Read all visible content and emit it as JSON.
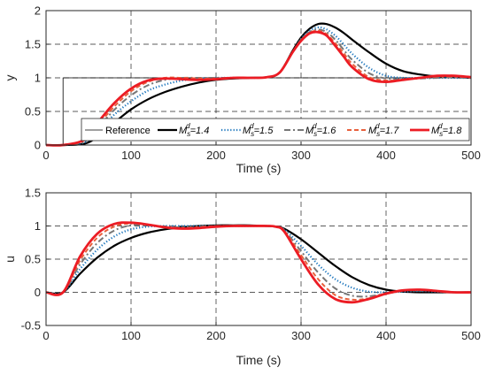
{
  "chart_data": [
    {
      "type": "line",
      "xlabel": "Time (s)",
      "ylabel": "y",
      "xlim": [
        0,
        500
      ],
      "ylim": [
        0,
        2
      ],
      "xticks": [
        0,
        100,
        200,
        300,
        400,
        500
      ],
      "yticks": [
        0,
        0.5,
        1,
        1.5,
        2
      ],
      "xtick_labels": [
        "0",
        "100",
        "200",
        "300",
        "400",
        "500"
      ],
      "ytick_labels": [
        "0",
        "0.5",
        "1",
        "1.5",
        "2"
      ],
      "grid": true,
      "legend_placement": "lower-center",
      "series": [
        {
          "name": "Reference",
          "color": "#000000",
          "style": "solid-thin",
          "x": [
            0,
            20,
            20,
            500
          ],
          "y": [
            0,
            0,
            1,
            1
          ]
        },
        {
          "name_prefix": "M",
          "name_sub": "s",
          "name_sup": "d",
          "name_value": "=1.4",
          "color": "#000000",
          "style": "solid",
          "x": [
            0,
            20,
            45,
            60,
            80,
            100,
            120,
            140,
            160,
            180,
            200,
            220,
            240,
            260,
            275,
            290,
            300,
            310,
            320,
            330,
            340,
            350,
            360,
            380,
            400,
            420,
            440,
            460,
            480,
            500
          ],
          "y": [
            0,
            0,
            0.02,
            0.12,
            0.33,
            0.53,
            0.68,
            0.79,
            0.87,
            0.93,
            0.97,
            0.99,
            1.0,
            1.01,
            1.08,
            1.4,
            1.6,
            1.73,
            1.8,
            1.8,
            1.75,
            1.67,
            1.57,
            1.38,
            1.21,
            1.1,
            1.05,
            1.02,
            1.01,
            1.0
          ]
        },
        {
          "name_prefix": "M",
          "name_sub": "s",
          "name_sup": "d",
          "name_value": "=1.5",
          "color": "#1a74bc",
          "style": "dotted",
          "x": [
            0,
            20,
            45,
            60,
            80,
            100,
            120,
            140,
            160,
            180,
            200,
            220,
            240,
            260,
            275,
            290,
            300,
            310,
            320,
            330,
            340,
            350,
            360,
            380,
            400,
            420,
            440,
            460,
            480,
            500
          ],
          "y": [
            0,
            0,
            0.04,
            0.2,
            0.45,
            0.65,
            0.81,
            0.9,
            0.96,
            0.99,
            1.0,
            1.0,
            1.0,
            1.01,
            1.08,
            1.38,
            1.58,
            1.7,
            1.75,
            1.72,
            1.63,
            1.5,
            1.36,
            1.15,
            1.03,
            1.0,
            1.0,
            1.0,
            1.0,
            1.0
          ]
        },
        {
          "name_prefix": "M",
          "name_sub": "s",
          "name_sup": "d",
          "name_value": "=1.6",
          "color": "#777777",
          "style": "dashdot",
          "x": [
            0,
            20,
            45,
            60,
            80,
            100,
            120,
            140,
            160,
            180,
            200,
            220,
            240,
            260,
            275,
            290,
            300,
            310,
            320,
            330,
            340,
            350,
            360,
            380,
            400,
            420,
            440,
            460,
            480,
            500
          ],
          "y": [
            0,
            0,
            0.05,
            0.24,
            0.52,
            0.74,
            0.89,
            0.97,
            1.0,
            1.0,
            1.0,
            1.0,
            1.0,
            1.01,
            1.08,
            1.38,
            1.57,
            1.68,
            1.72,
            1.68,
            1.57,
            1.42,
            1.27,
            1.07,
            0.99,
            0.98,
            0.99,
            1.0,
            1.01,
            1.0
          ]
        },
        {
          "name_prefix": "M",
          "name_sub": "s",
          "name_sup": "d",
          "name_value": "=1.7",
          "color": "#e8603c",
          "style": "dashed",
          "x": [
            0,
            20,
            45,
            60,
            80,
            100,
            120,
            140,
            160,
            180,
            200,
            220,
            240,
            260,
            275,
            290,
            300,
            310,
            320,
            330,
            340,
            350,
            360,
            380,
            400,
            420,
            440,
            460,
            480,
            500
          ],
          "y": [
            0,
            0,
            0.07,
            0.28,
            0.57,
            0.8,
            0.94,
            1.0,
            1.0,
            0.99,
            0.99,
            1.0,
            1.0,
            1.01,
            1.08,
            1.38,
            1.56,
            1.67,
            1.7,
            1.65,
            1.52,
            1.37,
            1.21,
            1.01,
            0.96,
            0.97,
            1.0,
            1.02,
            1.02,
            1.01
          ]
        },
        {
          "name_prefix": "M",
          "name_sub": "s",
          "name_sup": "d",
          "name_value": "=1.8",
          "color": "#ec1c24",
          "style": "solid-thick",
          "x": [
            0,
            20,
            45,
            60,
            80,
            100,
            120,
            140,
            160,
            180,
            200,
            220,
            240,
            260,
            275,
            290,
            300,
            310,
            320,
            330,
            340,
            350,
            360,
            380,
            400,
            420,
            440,
            460,
            480,
            500
          ],
          "y": [
            0,
            0,
            0.08,
            0.32,
            0.62,
            0.84,
            0.96,
            0.99,
            0.98,
            0.97,
            0.98,
            1.0,
            1.0,
            1.01,
            1.08,
            1.38,
            1.55,
            1.66,
            1.68,
            1.63,
            1.48,
            1.32,
            1.16,
            0.98,
            0.94,
            0.97,
            1.0,
            1.03,
            1.03,
            1.01
          ]
        }
      ]
    },
    {
      "type": "line",
      "xlabel": "Time (s)",
      "ylabel": "u",
      "xlim": [
        0,
        500
      ],
      "ylim": [
        -0.5,
        1.5
      ],
      "xticks": [
        0,
        100,
        200,
        300,
        400,
        500
      ],
      "yticks": [
        -0.5,
        0,
        0.5,
        1,
        1.5
      ],
      "xtick_labels": [
        "0",
        "100",
        "200",
        "300",
        "400",
        "500"
      ],
      "ytick_labels": [
        "-0.5",
        "0",
        "0.5",
        "1",
        "1.5"
      ],
      "grid": true,
      "series": [
        {
          "color": "#000000",
          "style": "solid",
          "x": [
            0,
            20,
            40,
            60,
            80,
            100,
            120,
            140,
            160,
            180,
            200,
            220,
            240,
            260,
            270,
            280,
            300,
            320,
            340,
            360,
            380,
            400,
            420,
            440,
            460,
            480,
            500
          ],
          "y": [
            0,
            0,
            0.28,
            0.52,
            0.7,
            0.82,
            0.9,
            0.95,
            0.98,
            1.0,
            1.01,
            1.01,
            1.01,
            1.0,
            0.99,
            0.96,
            0.8,
            0.6,
            0.4,
            0.23,
            0.11,
            0.04,
            0.01,
            0.0,
            0.0,
            0.0,
            0.0
          ]
        },
        {
          "color": "#1a74bc",
          "style": "dotted",
          "x": [
            0,
            20,
            40,
            60,
            80,
            100,
            120,
            140,
            160,
            180,
            200,
            220,
            240,
            260,
            270,
            280,
            300,
            320,
            340,
            360,
            380,
            400,
            420,
            440,
            460,
            480,
            500
          ],
          "y": [
            0,
            0,
            0.35,
            0.64,
            0.84,
            0.95,
            0.99,
            1.0,
            1.0,
            1.0,
            1.0,
            1.0,
            1.0,
            1.0,
            0.99,
            0.95,
            0.7,
            0.42,
            0.2,
            0.07,
            0.01,
            0.0,
            0.01,
            0.02,
            0.01,
            0.0,
            0.0
          ]
        },
        {
          "color": "#777777",
          "style": "dashdot",
          "x": [
            0,
            20,
            40,
            60,
            80,
            100,
            120,
            140,
            160,
            180,
            200,
            220,
            240,
            260,
            270,
            280,
            300,
            320,
            340,
            360,
            380,
            400,
            420,
            440,
            460,
            480,
            500
          ],
          "y": [
            0,
            0,
            0.42,
            0.74,
            0.93,
            1.01,
            1.01,
            0.99,
            0.98,
            0.99,
            1.0,
            1.0,
            1.0,
            1.0,
            0.99,
            0.94,
            0.62,
            0.3,
            0.06,
            -0.05,
            -0.06,
            -0.02,
            0.02,
            0.03,
            0.02,
            0.0,
            0.0
          ]
        },
        {
          "color": "#e8603c",
          "style": "dashed",
          "x": [
            0,
            20,
            40,
            60,
            80,
            100,
            120,
            140,
            160,
            180,
            200,
            220,
            240,
            260,
            270,
            280,
            300,
            320,
            340,
            360,
            380,
            400,
            420,
            440,
            460,
            480,
            500
          ],
          "y": [
            0,
            0,
            0.48,
            0.82,
            0.99,
            1.04,
            1.02,
            0.98,
            0.97,
            0.98,
            1.0,
            1.0,
            1.0,
            1.0,
            0.99,
            0.93,
            0.56,
            0.2,
            -0.04,
            -0.11,
            -0.09,
            -0.02,
            0.03,
            0.04,
            0.02,
            0.0,
            0.0
          ]
        },
        {
          "color": "#ec1c24",
          "style": "solid-thick",
          "x": [
            0,
            20,
            40,
            60,
            80,
            100,
            120,
            140,
            160,
            180,
            200,
            220,
            240,
            260,
            270,
            280,
            300,
            320,
            340,
            360,
            380,
            400,
            420,
            440,
            460,
            480,
            500
          ],
          "y": [
            0,
            0,
            0.54,
            0.88,
            1.03,
            1.05,
            1.02,
            0.98,
            0.96,
            0.97,
            0.99,
            1.0,
            1.0,
            1.0,
            0.99,
            0.92,
            0.5,
            0.12,
            -0.1,
            -0.15,
            -0.1,
            -0.02,
            0.03,
            0.04,
            0.02,
            0.0,
            0.0
          ]
        }
      ]
    }
  ]
}
